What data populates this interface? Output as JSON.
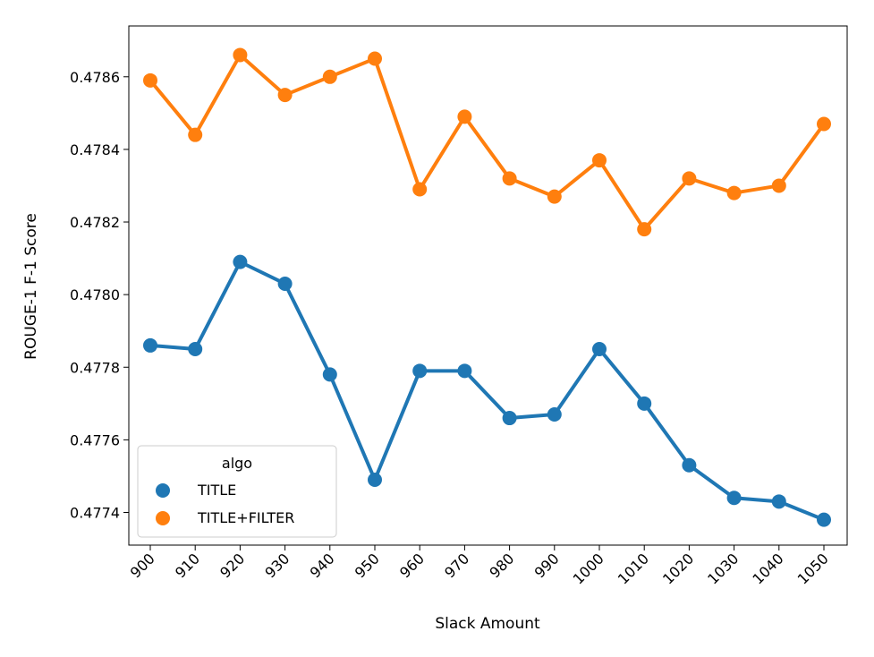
{
  "chart_data": {
    "type": "line",
    "xlabel": "Slack Amount",
    "ylabel": "ROUGE-1 F-1 Score",
    "categories": [
      "900",
      "910",
      "920",
      "930",
      "940",
      "950",
      "960",
      "970",
      "980",
      "990",
      "1000",
      "1010",
      "1020",
      "1030",
      "1040",
      "1050"
    ],
    "y_ticks": [
      "0.4774",
      "0.4776",
      "0.4778",
      "0.4780",
      "0.4782",
      "0.4784",
      "0.4786"
    ],
    "ylim": [
      0.47731,
      0.47874
    ],
    "grid": false,
    "legend": {
      "title": "algo",
      "position": "lower-left"
    },
    "series": [
      {
        "name": "TITLE",
        "color": "#1f77b4",
        "values": [
          0.47786,
          0.47785,
          0.47809,
          0.47803,
          0.47778,
          0.47749,
          0.47779,
          0.47779,
          0.47766,
          0.47767,
          0.47785,
          0.4777,
          0.47753,
          0.47744,
          0.47743,
          0.47738
        ]
      },
      {
        "name": "TITLE+FILTER",
        "color": "#ff7f0e",
        "values": [
          0.47859,
          0.47844,
          0.47866,
          0.47855,
          0.4786,
          0.47865,
          0.47829,
          0.47849,
          0.47832,
          0.47827,
          0.47837,
          0.47818,
          0.47832,
          0.47828,
          0.4783,
          0.47847
        ]
      }
    ]
  }
}
